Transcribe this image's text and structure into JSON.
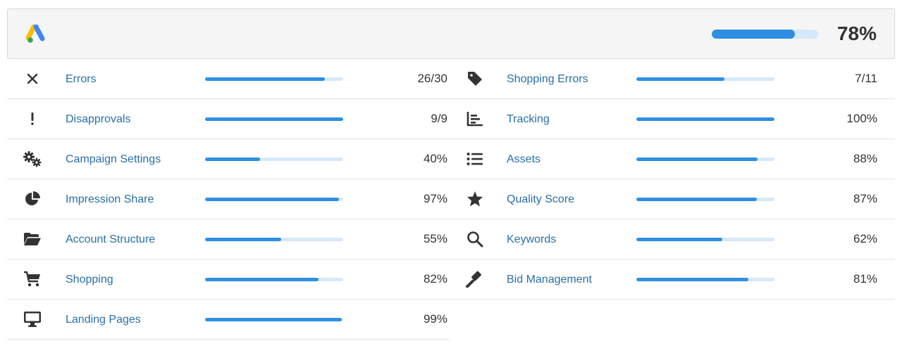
{
  "header": {
    "logo_icon": "google-ads-logo",
    "overall_score": "78%",
    "overall_progress": 0.78
  },
  "left_items": [
    {
      "id": "errors",
      "icon": "close-icon",
      "label": "Errors",
      "value": "26/30",
      "progress": 0.867
    },
    {
      "id": "disapprovals",
      "icon": "exclamation-icon",
      "label": "Disapprovals",
      "value": "9/9",
      "progress": 1.0
    },
    {
      "id": "campaign-settings",
      "icon": "gears-icon",
      "label": "Campaign Settings",
      "value": "40%",
      "progress": 0.4
    },
    {
      "id": "impression-share",
      "icon": "pie-chart-icon",
      "label": "Impression Share",
      "value": "97%",
      "progress": 0.97
    },
    {
      "id": "account-structure",
      "icon": "folder-open-icon",
      "label": "Account Structure",
      "value": "55%",
      "progress": 0.55
    },
    {
      "id": "shopping",
      "icon": "shopping-cart-icon",
      "label": "Shopping",
      "value": "82%",
      "progress": 0.82
    },
    {
      "id": "landing-pages",
      "icon": "desktop-icon",
      "label": "Landing Pages",
      "value": "99%",
      "progress": 0.99
    }
  ],
  "right_items": [
    {
      "id": "shopping-errors",
      "icon": "tag-icon",
      "label": "Shopping Errors",
      "value": "7/11",
      "progress": 0.636
    },
    {
      "id": "tracking",
      "icon": "bar-chart-icon",
      "label": "Tracking",
      "value": "100%",
      "progress": 1.0
    },
    {
      "id": "assets",
      "icon": "list-icon",
      "label": "Assets",
      "value": "88%",
      "progress": 0.88
    },
    {
      "id": "quality-score",
      "icon": "star-icon",
      "label": "Quality Score",
      "value": "87%",
      "progress": 0.87
    },
    {
      "id": "keywords",
      "icon": "search-icon",
      "label": "Keywords",
      "value": "62%",
      "progress": 0.62
    },
    {
      "id": "bid-management",
      "icon": "gavel-icon",
      "label": "Bid Management",
      "value": "81%",
      "progress": 0.81
    }
  ],
  "colors": {
    "accent": "#2e8fe2",
    "track": "#d6e9fa",
    "label": "#2a6fa8",
    "text": "#333333"
  }
}
